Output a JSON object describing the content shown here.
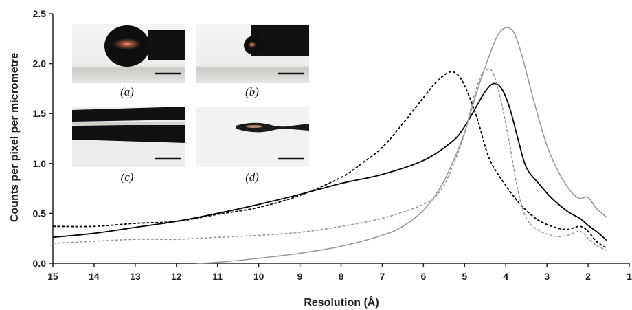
{
  "chart_data": {
    "type": "line",
    "title": "",
    "xlabel": "Resolution (Å)",
    "ylabel": "Counts per pixel per micrometre",
    "xlim": [
      15,
      1
    ],
    "ylim": [
      0,
      2.5
    ],
    "x_reversed": true,
    "x_ticks": [
      15,
      14,
      13,
      12,
      11,
      10,
      9,
      8,
      7,
      6,
      5,
      4,
      3,
      2,
      1
    ],
    "y_ticks": [
      "0.0",
      "0.5",
      "1.0",
      "1.5",
      "2.0",
      "2.5"
    ],
    "grid": false,
    "legend": "none",
    "series": [
      {
        "style": "solid",
        "color": "#000000",
        "points": [
          [
            15,
            0.26
          ],
          [
            14,
            0.3
          ],
          [
            13,
            0.36
          ],
          [
            12,
            0.42
          ],
          [
            11,
            0.5
          ],
          [
            10,
            0.59
          ],
          [
            9,
            0.69
          ],
          [
            8,
            0.8
          ],
          [
            7,
            0.89
          ],
          [
            6,
            1.03
          ],
          [
            5.3,
            1.22
          ],
          [
            5,
            1.37
          ],
          [
            4.7,
            1.58
          ],
          [
            4.5,
            1.72
          ],
          [
            4.3,
            1.8
          ],
          [
            4.1,
            1.75
          ],
          [
            3.9,
            1.55
          ],
          [
            3.7,
            1.24
          ],
          [
            3.5,
            0.96
          ],
          [
            3.2,
            0.8
          ],
          [
            2.9,
            0.66
          ],
          [
            2.5,
            0.52
          ],
          [
            2.2,
            0.45
          ],
          [
            2,
            0.38
          ],
          [
            1.8,
            0.32
          ],
          [
            1.55,
            0.23
          ]
        ]
      },
      {
        "style": "dashed",
        "color": "#000000",
        "points": [
          [
            15,
            0.37
          ],
          [
            14,
            0.37
          ],
          [
            13,
            0.4
          ],
          [
            12,
            0.42
          ],
          [
            11,
            0.49
          ],
          [
            10,
            0.56
          ],
          [
            9,
            0.68
          ],
          [
            8,
            0.86
          ],
          [
            7.5,
            1.0
          ],
          [
            7,
            1.16
          ],
          [
            6.5,
            1.4
          ],
          [
            6,
            1.66
          ],
          [
            5.7,
            1.81
          ],
          [
            5.4,
            1.91
          ],
          [
            5.2,
            1.9
          ],
          [
            5,
            1.78
          ],
          [
            4.7,
            1.46
          ],
          [
            4.4,
            1.05
          ],
          [
            4,
            0.78
          ],
          [
            3.6,
            0.57
          ],
          [
            3.2,
            0.43
          ],
          [
            2.8,
            0.36
          ],
          [
            2.5,
            0.34
          ],
          [
            2.2,
            0.37
          ],
          [
            2,
            0.32
          ],
          [
            1.8,
            0.22
          ],
          [
            1.55,
            0.15
          ]
        ]
      },
      {
        "style": "dashed",
        "color": "#999999",
        "points": [
          [
            15,
            0.2
          ],
          [
            14,
            0.22
          ],
          [
            13,
            0.24
          ],
          [
            12,
            0.24
          ],
          [
            11,
            0.26
          ],
          [
            10,
            0.28
          ],
          [
            9,
            0.31
          ],
          [
            8,
            0.37
          ],
          [
            7,
            0.45
          ],
          [
            6,
            0.59
          ],
          [
            5.6,
            0.72
          ],
          [
            5.3,
            0.96
          ],
          [
            5,
            1.3
          ],
          [
            4.8,
            1.63
          ],
          [
            4.6,
            1.88
          ],
          [
            4.45,
            1.94
          ],
          [
            4.3,
            1.9
          ],
          [
            4.1,
            1.6
          ],
          [
            3.9,
            1.18
          ],
          [
            3.7,
            0.72
          ],
          [
            3.5,
            0.45
          ],
          [
            3.2,
            0.33
          ],
          [
            2.8,
            0.27
          ],
          [
            2.5,
            0.28
          ],
          [
            2.2,
            0.32
          ],
          [
            2,
            0.25
          ],
          [
            1.8,
            0.18
          ],
          [
            1.55,
            0.13
          ]
        ]
      },
      {
        "style": "solid",
        "color": "#999999",
        "points": [
          [
            11.5,
            0.0
          ],
          [
            11,
            0.01
          ],
          [
            10,
            0.05
          ],
          [
            9,
            0.1
          ],
          [
            8,
            0.17
          ],
          [
            7,
            0.28
          ],
          [
            6.5,
            0.37
          ],
          [
            6,
            0.53
          ],
          [
            5.6,
            0.75
          ],
          [
            5.3,
            1.0
          ],
          [
            5,
            1.31
          ],
          [
            4.7,
            1.72
          ],
          [
            4.4,
            2.08
          ],
          [
            4.2,
            2.28
          ],
          [
            4,
            2.36
          ],
          [
            3.8,
            2.31
          ],
          [
            3.6,
            2.07
          ],
          [
            3.3,
            1.6
          ],
          [
            3,
            1.18
          ],
          [
            2.7,
            0.9
          ],
          [
            2.4,
            0.71
          ],
          [
            2.2,
            0.65
          ],
          [
            2,
            0.66
          ],
          [
            1.8,
            0.55
          ],
          [
            1.55,
            0.46
          ]
        ]
      }
    ],
    "inset_captions": [
      "(a)",
      "(b)",
      "(c)",
      "(d)"
    ]
  }
}
